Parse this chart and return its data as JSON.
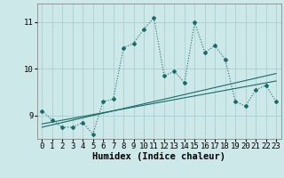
{
  "xlabel": "Humidex (Indice chaleur)",
  "ylabel": "",
  "bg_color": "#cce8e8",
  "grid_color": "#aad0d0",
  "line_color": "#1a6b6b",
  "x_data": [
    0,
    1,
    2,
    3,
    4,
    5,
    6,
    7,
    8,
    9,
    10,
    11,
    12,
    13,
    14,
    15,
    16,
    17,
    18,
    19,
    20,
    21,
    22,
    23
  ],
  "y_main": [
    9.1,
    8.9,
    8.75,
    8.75,
    8.85,
    8.6,
    9.3,
    9.35,
    10.45,
    10.55,
    10.85,
    11.1,
    9.85,
    9.95,
    9.7,
    11.0,
    10.35,
    10.5,
    10.2,
    9.3,
    9.2,
    9.55,
    9.65,
    9.3
  ],
  "y_reg1": [
    8.82,
    8.86,
    8.9,
    8.94,
    8.98,
    9.02,
    9.06,
    9.1,
    9.14,
    9.18,
    9.22,
    9.26,
    9.3,
    9.34,
    9.38,
    9.42,
    9.46,
    9.5,
    9.54,
    9.58,
    9.62,
    9.66,
    9.7,
    9.74
  ],
  "y_reg2": [
    8.75,
    8.8,
    8.85,
    8.9,
    8.95,
    9.0,
    9.05,
    9.1,
    9.15,
    9.2,
    9.25,
    9.3,
    9.35,
    9.4,
    9.45,
    9.5,
    9.55,
    9.6,
    9.65,
    9.7,
    9.75,
    9.8,
    9.85,
    9.9
  ],
  "ylim": [
    8.5,
    11.4
  ],
  "yticks": [
    9,
    10,
    11
  ],
  "xticks": [
    0,
    1,
    2,
    3,
    4,
    5,
    6,
    7,
    8,
    9,
    10,
    11,
    12,
    13,
    14,
    15,
    16,
    17,
    18,
    19,
    20,
    21,
    22,
    23
  ],
  "tick_fontsize": 6.5,
  "label_fontsize": 7.5
}
